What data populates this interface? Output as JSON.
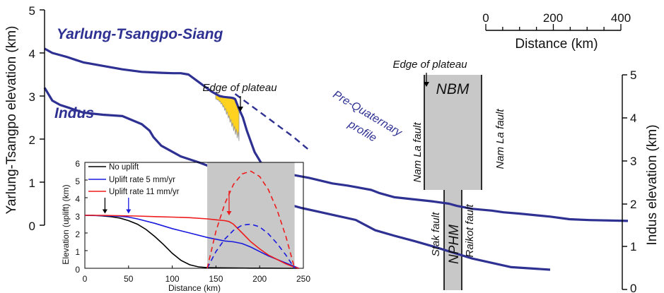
{
  "colors": {
    "profile": "#2e3192",
    "shade": "#c8c8c8",
    "fill": "#ffd21f",
    "black": "#000000",
    "blue": "#1a1adf",
    "red": "#ee1c1c",
    "text": "#111111"
  },
  "chart_data": [
    {
      "type": "line",
      "title": "",
      "series": [
        {
          "name": "Yarlung-Tsangpo-Siang",
          "axis": "left",
          "distance_km": [
            0,
            20,
            40,
            60,
            80,
            100,
            150,
            200,
            250,
            300,
            330,
            350,
            370,
            400,
            430,
            440,
            450,
            460,
            470,
            480,
            485,
            490,
            500,
            510,
            520,
            540,
            560,
            570,
            600,
            620,
            680,
            740,
            780,
            840,
            860,
            900,
            1000,
            1040,
            1060,
            1100,
            1150,
            1180,
            1220,
            1300,
            1350,
            1400,
            1500
          ],
          "elevation_km": [
            4.1,
            4.0,
            3.95,
            3.9,
            3.84,
            3.78,
            3.7,
            3.62,
            3.56,
            3.54,
            3.53,
            3.53,
            3.5,
            3.3,
            3.1,
            3.05,
            3.0,
            2.98,
            2.97,
            2.96,
            2.95,
            2.93,
            2.7,
            2.5,
            2.2,
            1.7,
            1.4,
            1.35,
            1.27,
            1.2,
            1.1,
            0.97,
            0.92,
            0.82,
            0.75,
            0.65,
            0.55,
            0.5,
            0.45,
            0.38,
            0.34,
            0.3,
            0.27,
            0.2,
            0.14,
            0.12,
            0.1
          ]
        },
        {
          "name": "Indus",
          "axis": "right",
          "distance_km": [
            0,
            20,
            40,
            60,
            80,
            100,
            150,
            200,
            250,
            270,
            280,
            300,
            350,
            400,
            450,
            500,
            520,
            560,
            600,
            640,
            660,
            700,
            750,
            800,
            850,
            900,
            950,
            1000,
            1100,
            1200,
            1300
          ],
          "elevation_km": [
            4.7,
            4.4,
            4.3,
            4.24,
            4.18,
            4.12,
            4.07,
            4.04,
            3.85,
            3.7,
            3.55,
            3.35,
            3.1,
            2.95,
            2.78,
            2.6,
            2.4,
            2.22,
            2.05,
            1.95,
            1.9,
            1.82,
            1.72,
            1.62,
            1.38,
            1.25,
            1.13,
            1.0,
            0.72,
            0.52,
            0.46
          ]
        }
      ],
      "pre_quaternary_profile": {
        "distance_km": [
          490,
          520,
          550,
          580,
          610,
          640,
          660,
          670,
          680
        ],
        "elevation_km": [
          3.05,
          2.85,
          2.65,
          2.45,
          2.25,
          2.05,
          1.9,
          1.82,
          1.75
        ]
      },
      "left_axis": {
        "label": "Yarlung-Tsangpo elevation (km)",
        "ticks": [
          "0",
          "1",
          "2",
          "3",
          "4",
          "5"
        ],
        "ylim": [
          0,
          5
        ]
      },
      "right_axis": {
        "label": "Indus elevation (km)",
        "ticks": [
          "0",
          "1",
          "2",
          "3",
          "4",
          "5"
        ],
        "ylim": [
          0,
          5
        ]
      },
      "scale_bar": {
        "ticks": [
          "0",
          "200",
          "400"
        ],
        "label": "Distance (km)"
      },
      "annotations": {
        "yts_label": "Yarlung-Tsangpo-Siang",
        "indus_label": "Indus",
        "edge1": "Edge of plateau",
        "edge2": "Edge of plateau",
        "nbm": "NBM",
        "nam1": "Nam La fault",
        "nam2": "Nam La fault",
        "preq1": "Pre-Quaternary",
        "preq2": "profile",
        "npm": "NPHM",
        "stak": "Stak fault",
        "raikot": "Raikot fault"
      }
    },
    {
      "type": "line",
      "xlabel": "Distance (km)",
      "ylabel": "Elevation (uplift) (km)",
      "xlim": [
        0,
        250
      ],
      "ylim": [
        0,
        6
      ],
      "x_ticks": [
        "0",
        "50",
        "100",
        "150",
        "200",
        "250"
      ],
      "y_ticks": [
        "0",
        "1",
        "2",
        "3",
        "4",
        "5",
        "6"
      ],
      "shaded_range_km": [
        140,
        240
      ],
      "legend": {
        "position": "top-left",
        "entries": [
          "No uplift",
          "Uplift rate 5 mm/yr",
          "Uplift rate 11 mm/yr"
        ]
      },
      "series": [
        {
          "name": "No uplift",
          "x": [
            0,
            10,
            20,
            30,
            40,
            50,
            60,
            70,
            80,
            90,
            100,
            110,
            120,
            130,
            140,
            150,
            170,
            190,
            210,
            230,
            245
          ],
          "y": [
            3.0,
            3.0,
            2.97,
            2.92,
            2.85,
            2.7,
            2.5,
            2.2,
            1.8,
            1.35,
            0.85,
            0.45,
            0.2,
            0.08,
            0.04,
            0.03,
            0.02,
            0.01,
            0.01,
            0.0,
            0.0
          ]
        },
        {
          "name": "Uplift rate 5 mm/yr",
          "x": [
            0,
            20,
            40,
            50,
            60,
            80,
            100,
            120,
            140,
            150,
            160,
            170,
            180,
            190,
            200,
            210,
            220,
            230,
            240,
            245
          ],
          "y": [
            3.0,
            2.98,
            2.95,
            2.9,
            2.8,
            2.55,
            2.25,
            2.0,
            1.75,
            1.65,
            1.55,
            1.5,
            1.4,
            1.2,
            0.95,
            0.7,
            0.5,
            0.3,
            0.1,
            0.0
          ]
        },
        {
          "name": "Uplift rate 11 mm/yr",
          "x": [
            0,
            20,
            40,
            60,
            80,
            100,
            120,
            140,
            150,
            160,
            165,
            170,
            180,
            190,
            200,
            210,
            220,
            230,
            240,
            245
          ],
          "y": [
            3.0,
            3.0,
            2.98,
            2.96,
            2.93,
            2.9,
            2.87,
            2.8,
            2.75,
            2.7,
            2.65,
            2.5,
            2.0,
            1.5,
            1.1,
            0.75,
            0.5,
            0.25,
            0.06,
            0.0
          ]
        }
      ],
      "dashed_uplift": [
        {
          "color": "blue",
          "x": [
            140,
            150,
            160,
            170,
            180,
            190,
            200,
            210,
            220,
            230,
            240
          ],
          "y": [
            0.0,
            0.95,
            1.65,
            2.15,
            2.45,
            2.5,
            2.35,
            1.95,
            1.4,
            0.75,
            0.0
          ]
        },
        {
          "color": "red",
          "x": [
            140,
            150,
            160,
            170,
            180,
            190,
            200,
            210,
            220,
            230,
            240
          ],
          "y": [
            0.0,
            2.1,
            3.65,
            4.75,
            5.35,
            5.5,
            5.2,
            4.45,
            3.3,
            1.8,
            0.0
          ]
        }
      ],
      "arrows_km": {
        "black": 23,
        "blue": 50,
        "red": 165
      }
    }
  ]
}
